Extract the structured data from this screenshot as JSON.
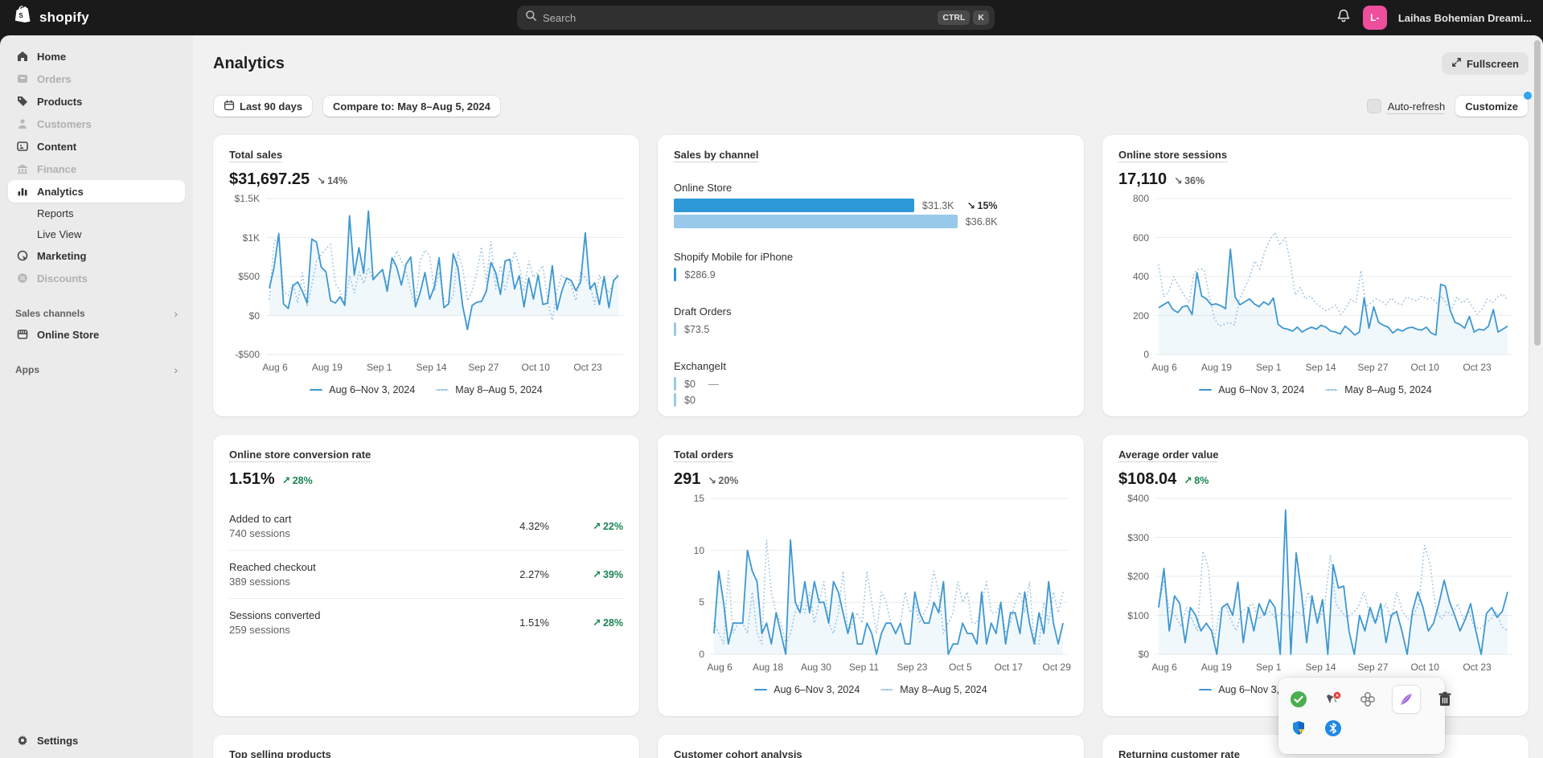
{
  "colors": {
    "accent_line": "#3e97d1",
    "compare_line": "#a0c6e2",
    "bar_current": "#2e99d9",
    "bar_previous": "#99c9ea",
    "success_green": "#1a8452",
    "neutral_grey": "#616161",
    "customize_dot": "#33a3f4",
    "avatar_pink": "#ee4f9c"
  },
  "topbar": {
    "brand": "shopify",
    "search_placeholder": "Search",
    "kbd": [
      "CTRL",
      "K"
    ],
    "account_initials": "L-",
    "account_name": "Laihas Bohemian Dreami..."
  },
  "sidebar": {
    "items": [
      {
        "label": "Home",
        "state": "normal"
      },
      {
        "label": "Orders",
        "state": "disabled"
      },
      {
        "label": "Products",
        "state": "normal"
      },
      {
        "label": "Customers",
        "state": "disabled"
      },
      {
        "label": "Content",
        "state": "normal"
      },
      {
        "label": "Finance",
        "state": "disabled"
      },
      {
        "label": "Analytics",
        "state": "active"
      },
      {
        "label": "Reports",
        "state": "sub"
      },
      {
        "label": "Live View",
        "state": "sub"
      },
      {
        "label": "Marketing",
        "state": "normal"
      },
      {
        "label": "Discounts",
        "state": "disabled"
      }
    ],
    "sections": [
      {
        "label": "Sales channels",
        "items": [
          {
            "label": "Online Store"
          }
        ]
      },
      {
        "label": "Apps",
        "items": []
      }
    ],
    "settings_label": "Settings"
  },
  "header": {
    "title": "Analytics",
    "fullscreen_label": "Fullscreen"
  },
  "controls": {
    "date_range": "Last 90 days",
    "compare": "Compare to: May 8–Aug 5, 2024",
    "auto_refresh": "Auto-refresh",
    "customize": "Customize"
  },
  "chart_data": [
    {
      "id": "total-sales",
      "type": "line",
      "title": "Total sales",
      "metric": "$31,697.25",
      "arrow": "↘",
      "change": "14%",
      "dir": "down",
      "y_ticks": [
        "$1.5K",
        "$1K",
        "$500",
        "$0",
        "-$500"
      ],
      "y_range": [
        -500,
        1500
      ],
      "x_ticks": [
        "Aug 6",
        "Aug 19",
        "Sep 1",
        "Sep 14",
        "Sep 27",
        "Oct 10",
        "Oct 23"
      ],
      "x_tick_pos": [
        0,
        14.6,
        29.2,
        43.8,
        58.4,
        73,
        87.6
      ],
      "series": [
        {
          "name": "Aug 6–Nov 3, 2024",
          "style": "solid",
          "values": [
            350,
            620,
            1050,
            150,
            90,
            380,
            430,
            310,
            160,
            980,
            940,
            620,
            560,
            190,
            160,
            240,
            130,
            1280,
            520,
            870,
            540,
            1340,
            460,
            530,
            590,
            310,
            740,
            620,
            390,
            660,
            750,
            110,
            300,
            550,
            210,
            370,
            740,
            100,
            150,
            790,
            610,
            120,
            -180,
            130,
            170,
            180,
            310,
            680,
            550,
            270,
            700,
            720,
            340,
            510,
            110,
            480,
            210,
            520,
            140,
            160,
            640,
            70,
            310,
            480,
            450,
            320,
            430,
            1060,
            340,
            420,
            140,
            500,
            100,
            450,
            510
          ]
        },
        {
          "name": "May 8–Aug 5, 2024",
          "style": "dotted",
          "values": [
            210,
            950,
            1010,
            310,
            260,
            410,
            160,
            550,
            110,
            390,
            700,
            780,
            860,
            910,
            410,
            310,
            130,
            510,
            290,
            560,
            410,
            610,
            460,
            530,
            580,
            390,
            650,
            830,
            700,
            560,
            310,
            130,
            700,
            840,
            760,
            310,
            560,
            210,
            140,
            260,
            820,
            600,
            190,
            310,
            560,
            880,
            430,
            950,
            340,
            640,
            310,
            580,
            820,
            640,
            310,
            700,
            490,
            560,
            640,
            190,
            -60,
            310,
            520,
            450,
            390,
            190,
            560,
            480,
            390,
            140,
            520,
            380,
            290,
            420,
            560
          ]
        }
      ]
    },
    {
      "id": "sales-by-channel",
      "type": "bar",
      "title": "Sales by channel",
      "rows": {
        "online_store": {
          "label": "Online Store",
          "cur_value": "$31.3K",
          "cur_pct": 61,
          "arrow": "↘",
          "change": "15%",
          "prev_value": "$36.8K",
          "prev_pct": 72
        },
        "mobile": {
          "label": "Shopify Mobile for iPhone",
          "cur_value": "$286.9",
          "cur_pct": 0.7
        },
        "draft": {
          "label": "Draft Orders",
          "cur_value": "$73.5",
          "cur_pct": 0.45
        },
        "exchangeit": {
          "label": "ExchangeIt",
          "cur_value": "$0",
          "cur_pct": 0.3,
          "no_change": "—",
          "prev_value": "$0",
          "prev_pct": 0.3
        }
      }
    },
    {
      "id": "online-store-sessions",
      "type": "line",
      "title": "Online store sessions",
      "metric": "17,110",
      "arrow": "↘",
      "change": "36%",
      "dir": "down",
      "y_ticks": [
        "800",
        "600",
        "400",
        "200",
        "0"
      ],
      "y_range": [
        0,
        800
      ],
      "x_ticks": [
        "Aug 6",
        "Aug 19",
        "Sep 1",
        "Sep 14",
        "Sep 27",
        "Oct 10",
        "Oct 23"
      ],
      "x_tick_pos": [
        0,
        14.6,
        29.2,
        43.8,
        58.4,
        73,
        87.6
      ],
      "series": [
        {
          "name": "Aug 6–Nov 3, 2024",
          "style": "solid",
          "values": [
            240,
            255,
            270,
            230,
            215,
            245,
            250,
            205,
            420,
            300,
            285,
            255,
            260,
            250,
            235,
            540,
            295,
            255,
            270,
            285,
            260,
            245,
            270,
            255,
            290,
            155,
            135,
            130,
            120,
            140,
            115,
            130,
            140,
            130,
            150,
            140,
            120,
            115,
            105,
            145,
            125,
            100,
            115,
            290,
            135,
            245,
            165,
            150,
            140,
            110,
            130,
            120,
            135,
            140,
            130,
            125,
            140,
            110,
            100,
            360,
            350,
            225,
            165,
            155,
            135,
            195,
            115,
            130,
            125,
            145,
            230,
            115,
            130,
            145
          ]
        },
        {
          "name": "May 8–Aug 5, 2024",
          "style": "dotted",
          "values": [
            460,
            295,
            325,
            400,
            350,
            305,
            265,
            420,
            440,
            435,
            300,
            185,
            145,
            155,
            165,
            150,
            285,
            340,
            400,
            480,
            440,
            530,
            590,
            625,
            560,
            600,
            480,
            305,
            345,
            285,
            300,
            265,
            245,
            225,
            235,
            255,
            205,
            235,
            285,
            265,
            430,
            245,
            265,
            285,
            275,
            255,
            290,
            265,
            255,
            295,
            285,
            275,
            300,
            285,
            290,
            265,
            300,
            255,
            235,
            295,
            265,
            285,
            245,
            205,
            235,
            285,
            265,
            295,
            310,
            280
          ]
        }
      ]
    },
    {
      "id": "conversion-rate",
      "type": "table",
      "title": "Online store conversion rate",
      "metric": "1.51%",
      "arrow": "↗",
      "change": "28%",
      "dir": "up",
      "rows": [
        {
          "label": "Added to cart",
          "sessions": "740 sessions",
          "rate": "4.32%",
          "arrow": "↗",
          "change": "22%"
        },
        {
          "label": "Reached checkout",
          "sessions": "389 sessions",
          "rate": "2.27%",
          "arrow": "↗",
          "change": "39%"
        },
        {
          "label": "Sessions converted",
          "sessions": "259 sessions",
          "rate": "1.51%",
          "arrow": "↗",
          "change": "28%"
        }
      ]
    },
    {
      "id": "total-orders",
      "type": "line",
      "title": "Total orders",
      "metric": "291",
      "arrow": "↘",
      "change": "20%",
      "dir": "down",
      "y_ticks": [
        "15",
        "10",
        "5",
        "0"
      ],
      "y_range": [
        0,
        15
      ],
      "x_ticks": [
        "Aug 6",
        "Aug 18",
        "Aug 30",
        "Sep 11",
        "Sep 23",
        "Oct 5",
        "Oct 17",
        "Oct 29"
      ],
      "x_tick_pos": [
        0,
        13.5,
        27,
        40.4,
        53.9,
        67.4,
        80.9,
        94.4
      ],
      "series": [
        {
          "name": "Aug 6–Nov 3, 2024",
          "style": "solid",
          "values": [
            2,
            8,
            5,
            1,
            3,
            3,
            3,
            10,
            8,
            7,
            2,
            3,
            1,
            4,
            2,
            0,
            11,
            5,
            4,
            7,
            4,
            7,
            5,
            5,
            3,
            7,
            6,
            4,
            2,
            4,
            1,
            1,
            3,
            2,
            0,
            2,
            3,
            3,
            2,
            3,
            1,
            1,
            6,
            4,
            3,
            3,
            5,
            4,
            7,
            0,
            1,
            1,
            3,
            2,
            2,
            1,
            6,
            1,
            3,
            2,
            5,
            1,
            4,
            4,
            2,
            6,
            3,
            1,
            4,
            2,
            7,
            3,
            1,
            3
          ]
        },
        {
          "name": "May 8–Aug 5, 2024",
          "style": "dotted",
          "values": [
            3,
            2,
            1,
            8,
            2,
            3,
            3,
            2,
            6,
            2,
            1,
            11,
            6,
            4,
            3,
            1,
            2,
            4,
            5,
            4,
            6,
            3,
            5,
            7,
            3,
            2,
            4,
            8,
            2,
            3,
            4,
            3,
            8,
            5,
            2,
            6,
            5,
            3,
            2,
            3,
            6,
            4,
            5,
            3,
            4,
            5,
            8,
            6,
            2,
            3,
            4,
            7,
            5,
            6,
            3,
            3,
            5,
            7,
            4,
            4,
            5,
            2,
            3,
            5,
            6,
            4,
            7,
            1,
            1,
            5,
            3,
            6,
            4,
            6
          ]
        }
      ]
    },
    {
      "id": "average-order-value",
      "type": "line",
      "title": "Average order value",
      "metric": "$108.04",
      "arrow": "↗",
      "change": "8%",
      "dir": "up",
      "y_ticks": [
        "$400",
        "$300",
        "$200",
        "$100",
        "$0"
      ],
      "y_range": [
        0,
        400
      ],
      "x_ticks": [
        "Aug 6",
        "Aug 19",
        "Sep 1",
        "Sep 14",
        "Sep 27",
        "Oct 10",
        "Oct 23"
      ],
      "x_tick_pos": [
        0,
        14.6,
        29.2,
        43.8,
        58.4,
        73,
        87.6
      ],
      "series": [
        {
          "name": "Aug 6–Nov 3, 2024",
          "style": "solid",
          "values": [
            120,
            220,
            60,
            150,
            130,
            30,
            120,
            100,
            60,
            80,
            60,
            0,
            120,
            130,
            100,
            185,
            30,
            120,
            60,
            130,
            100,
            140,
            120,
            0,
            370,
            0,
            260,
            160,
            30,
            150,
            80,
            140,
            0,
            230,
            170,
            175,
            60,
            0,
            100,
            60,
            120,
            80,
            130,
            30,
            100,
            110,
            60,
            0,
            110,
            160,
            120,
            60,
            80,
            130,
            190,
            135,
            100,
            60,
            90,
            130,
            60,
            0,
            105,
            120,
            95,
            110,
            160
          ]
        },
        {
          "name": "May 8–Aug 5, 2024",
          "style": "dotted",
          "values": [
            130,
            190,
            110,
            100,
            70,
            120,
            90,
            60,
            265,
            220,
            30,
            110,
            130,
            90,
            60,
            110,
            120,
            130,
            90,
            100,
            110,
            95,
            105,
            100,
            95,
            110,
            100,
            160,
            120,
            90,
            130,
            255,
            130,
            110,
            95,
            105,
            120,
            160,
            110,
            80,
            100,
            130,
            90,
            160,
            110,
            90,
            100,
            130,
            280,
            230,
            120,
            90,
            110,
            100,
            130,
            90,
            110,
            70,
            65,
            80,
            90,
            110,
            70,
            60
          ]
        }
      ]
    }
  ],
  "bottom_cards": [
    {
      "title": "Top selling products"
    },
    {
      "title": "Customer cohort analysis"
    },
    {
      "title": "Returning customer rate"
    }
  ],
  "ext_toolbar": {
    "icons": [
      "verified-check",
      "pin-alert",
      "clover",
      "feather-pen",
      "trash",
      "shield-warning",
      "bluetooth"
    ]
  }
}
